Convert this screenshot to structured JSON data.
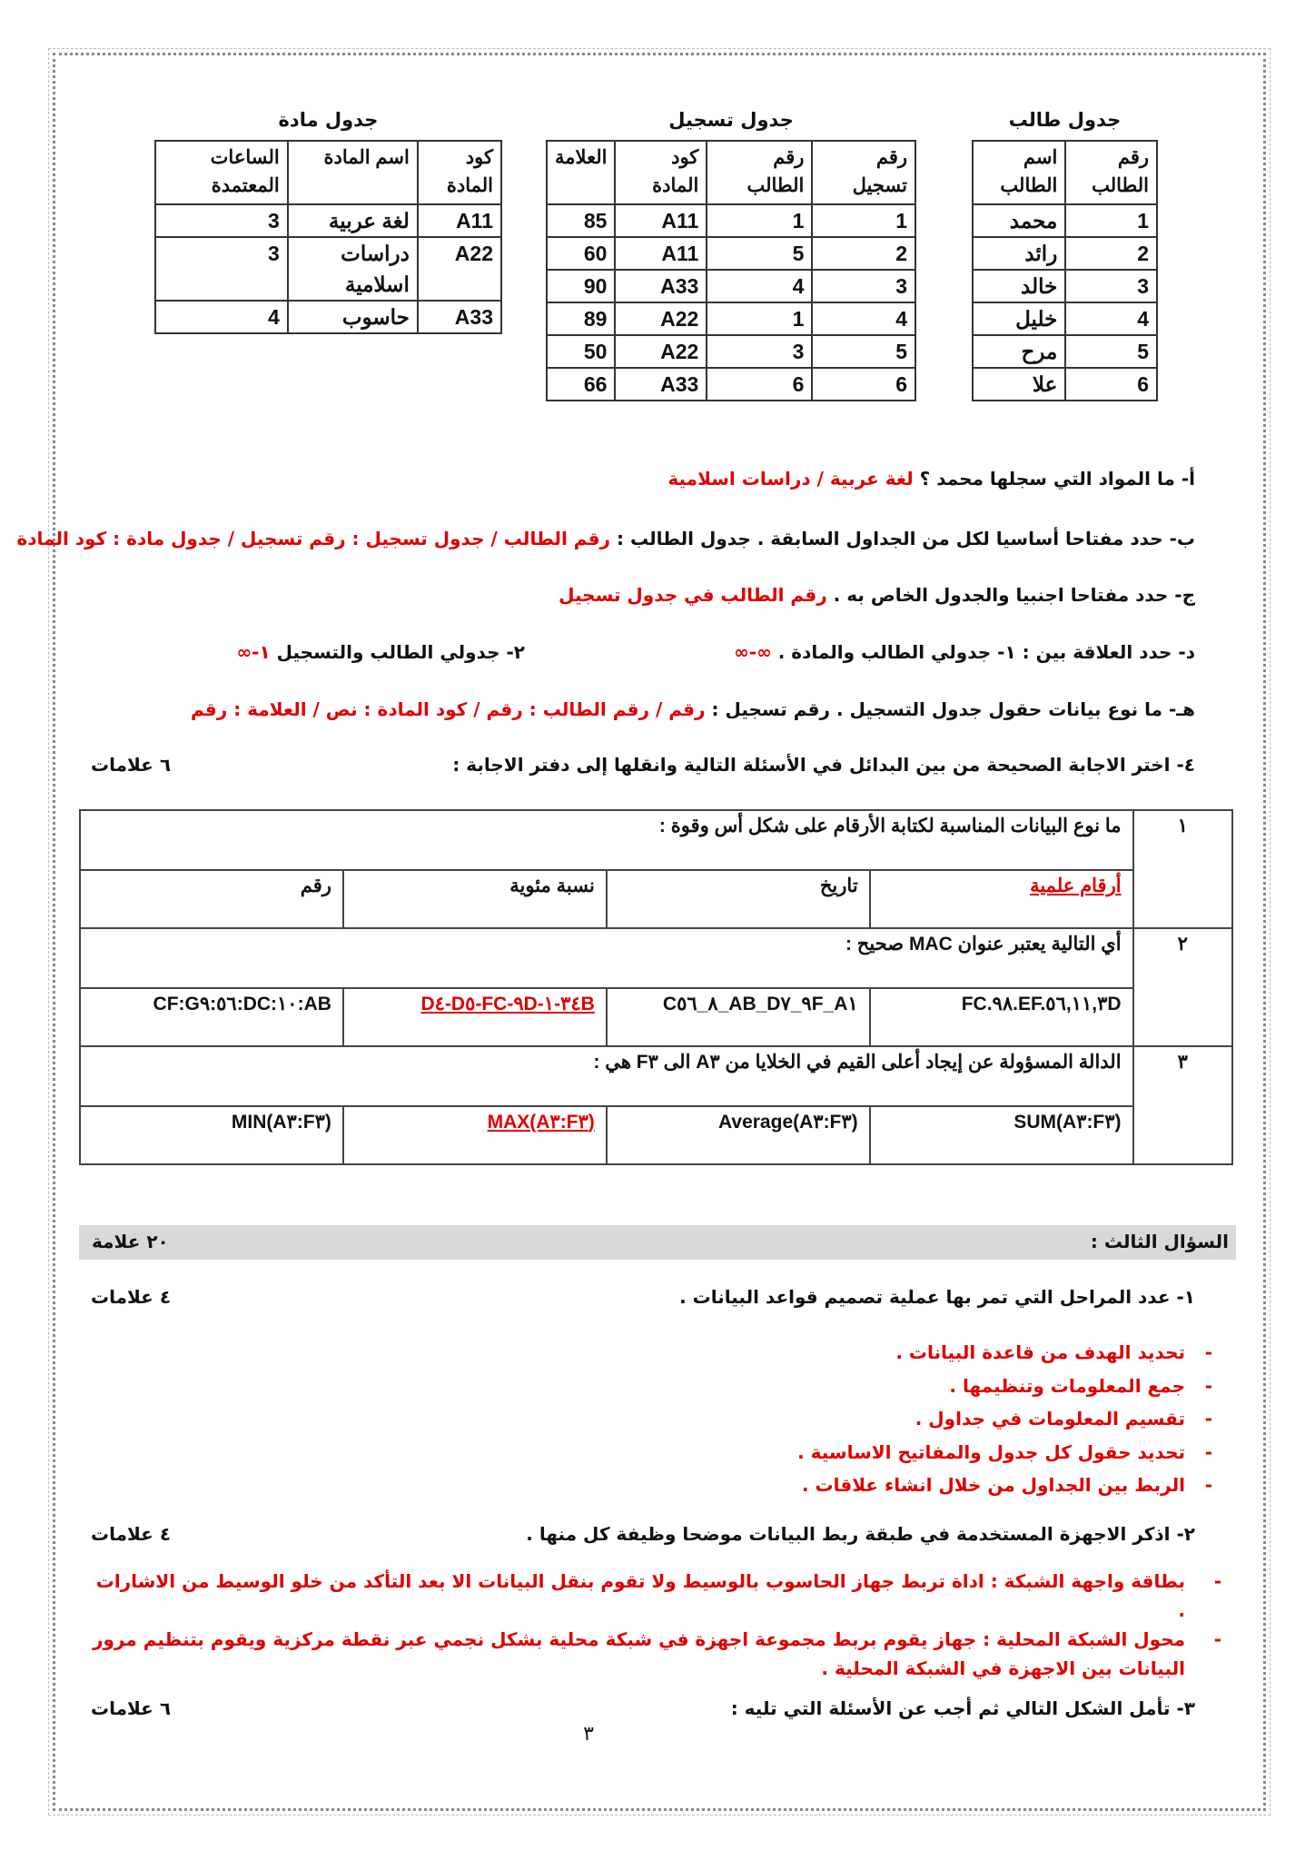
{
  "student_table": {
    "title": "جدول طالب",
    "headers": [
      "رقم الطالب",
      "اسم الطالب"
    ],
    "rows": [
      [
        "1",
        "محمد"
      ],
      [
        "2",
        "رائد"
      ],
      [
        "3",
        "خالد"
      ],
      [
        "4",
        "خليل"
      ],
      [
        "5",
        "مرح"
      ],
      [
        "6",
        "علا"
      ]
    ]
  },
  "registration_table": {
    "title": "جدول تسجيل",
    "headers": [
      "رقم تسجيل",
      "رقم الطالب",
      "كود المادة",
      "العلامة"
    ],
    "rows": [
      [
        "1",
        "1",
        "A11",
        "85"
      ],
      [
        "2",
        "5",
        "A11",
        "60"
      ],
      [
        "3",
        "4",
        "A33",
        "90"
      ],
      [
        "4",
        "1",
        "A22",
        "89"
      ],
      [
        "5",
        "3",
        "A22",
        "50"
      ],
      [
        "6",
        "6",
        "A33",
        "66"
      ]
    ]
  },
  "subject_table": {
    "title": "جدول مادة",
    "headers": [
      "كود المادة",
      "اسم المادة",
      "الساعات المعتمدة"
    ],
    "rows": [
      [
        "A11",
        "لغة عربية",
        "3"
      ],
      [
        "A22",
        "دراسات اسلامية",
        "3"
      ],
      [
        "A33",
        "حاسوب",
        "4"
      ]
    ]
  },
  "questions": {
    "a": {
      "text": "أ- ما المواد التي سجلها محمد ؟ ",
      "answer": "لغة عربية / دراسات اسلامية"
    },
    "b": {
      "text": "ب- حدد مفتاحا أساسيا لكل من الجداول السابقة . جدول الطالب : ",
      "answer": "رقم الطالب / جدول تسجيل : رقم تسجيل / جدول مادة : كود المادة"
    },
    "c": {
      "text": "ج- حدد مفتاحا اجنبيا والجدول الخاص به . ",
      "answer": "رقم الطالب في جدول تسجيل"
    },
    "d": {
      "text": "د- حدد العلاقة بين : ١- جدولي الطالب والمادة . ",
      "answer1": "∞-∞",
      "text2": "٢- جدولي الطالب والتسجيل ",
      "answer2": "١-∞"
    },
    "h": {
      "text": "هـ- ما نوع بيانات حقول جدول التسجيل . رقم تسجيل : ",
      "answer": "رقم / رقم الطالب : رقم / كود المادة : نص / العلامة : رقم"
    },
    "q4": {
      "text": "٤- اختر الاجابة الصحيحة من بين البدائل في الأسئلة التالية وانقلها إلى دفتر الاجابة :",
      "marks": "٦ علامات"
    }
  },
  "mcq": [
    {
      "num": "١",
      "question": "ما نوع البيانات المناسبة لكتابة الأرقام على شكل أس وقوة  :",
      "options": [
        "أرقام علمية",
        "تاريخ",
        "نسبة مئوية",
        "رقم"
      ],
      "correct": 0
    },
    {
      "num": "٢",
      "question": "أي التالية يعتبر عنوان MAC صحيح :",
      "options": [
        "FC.٩٨.EF.٥٦,١١,٣D",
        "C٨_٥٦_AB_D٩_٧F_A١",
        "D٤-D٥-FC-٩D-٣٤-١B",
        "CF:G٩:٥٦:DC:١٠:AB"
      ],
      "correct": 2
    },
    {
      "num": "٣",
      "question": "الدالة المسؤولة عن إيجاد أعلى القيم في الخلايا من A٣ الى F٣ هي :",
      "options": [
        "SUM(A٣:F٣)",
        "Average(A٣:F٣)",
        "MAX(A٣:F٣)",
        "MIN(A٣:F٣)"
      ],
      "correct": 2
    }
  ],
  "section3": {
    "title": "السؤال الثالث :",
    "marks": "٢٠ علامة",
    "q1": {
      "text": "١- عدد المراحل التي تمر بها عملية تصميم قواعد البيانات .",
      "marks": "٤ علامات",
      "answers": [
        "تحديد الهدف من قاعدة البيانات .",
        "جمع المعلومات وتنظيمها .",
        "تقسيم المعلومات في جداول .",
        "تحديد حقول كل جدول والمفاتيح الاساسية .",
        "الربط بين الجداول من خلال انشاء علاقات ."
      ]
    },
    "q2": {
      "text": "٢- اذكر الاجهزة المستخدمة في طبقة ربط البيانات موضحا وظيفة كل منها .",
      "marks": "٤ علامات",
      "answers": [
        "بطاقة واجهة الشبكة : اداة تربط جهاز الحاسوب بالوسيط ولا تقوم بنقل البيانات الا بعد التأكد من خلو الوسيط من الاشارات .",
        "محول الشبكة المحلية : جهاز يقوم بربط مجموعة اجهزة في شبكة محلية بشكل نجمي عبر نقطة مركزية ويقوم بتنظيم مرور البيانات بين الاجهزة في الشبكة المحلية ."
      ]
    },
    "q3": {
      "text": "٣- تأمل الشكل التالي ثم أجب عن الأسئلة التي تليه :",
      "marks": "٦ علامات"
    }
  },
  "page_number": "٣",
  "colors": {
    "answer": "#e00000",
    "section_bar": "#d9d9d9"
  }
}
